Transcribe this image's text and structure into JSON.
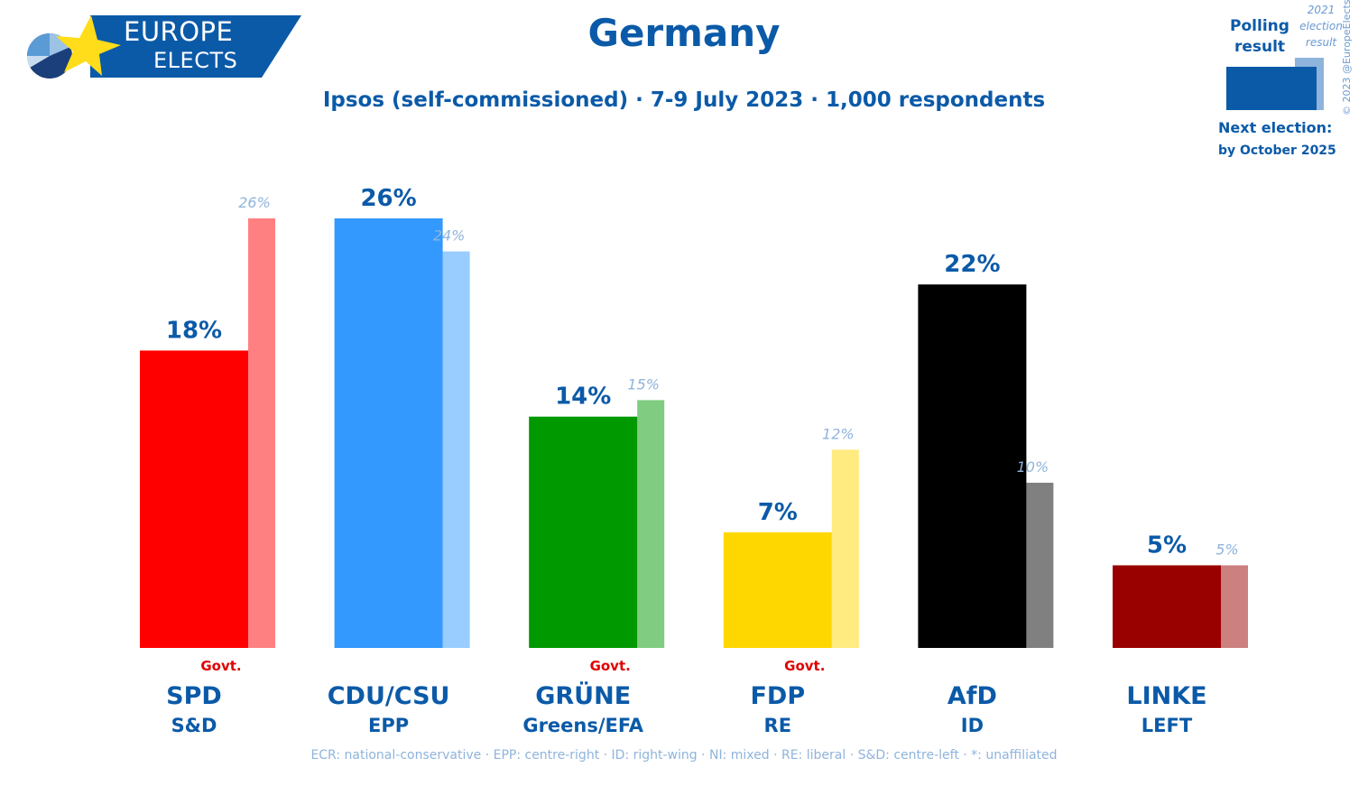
{
  "logo": {
    "line1": "EUROPE",
    "line2": "ELECTS"
  },
  "header": {
    "title": "Germany",
    "subtitle": "Ipsos (self-commissioned) · 7-9 July 2023 · 1,000 respondents"
  },
  "legend": {
    "polling_label": "Polling result",
    "previous_label": "2021 election result",
    "next_election_label": "Next election:",
    "next_election_date": "by October 2025",
    "copyright": "© 2023 @EuropeElects"
  },
  "footer": {
    "note": "ECR: national-conservative · EPP: centre-right · ID: right-wing · NI: mixed · RE: liberal · S&D: centre-left · *: unaffiliated"
  },
  "colors": {
    "brand": "#0b5aa8",
    "brand_light": "#8fb4dc",
    "govt": "#e00000"
  },
  "chart_data": {
    "type": "bar",
    "ylim": [
      0,
      26
    ],
    "series": [
      {
        "name": "Polling result",
        "values": [
          18,
          26,
          14,
          7,
          22,
          5
        ]
      },
      {
        "name": "2021 election result",
        "values": [
          26,
          24,
          15,
          12,
          10,
          5
        ]
      }
    ],
    "categories": [
      "SPD",
      "CDU/CSU",
      "GRÜNE",
      "FDP",
      "AfD",
      "LINKE"
    ],
    "parties": [
      {
        "name": "SPD",
        "group": "S&D",
        "poll": 18,
        "prev": 26,
        "poll_label": "18%",
        "prev_label": "26%",
        "govt": "Govt.",
        "color": "#ff0000",
        "light": "#ff8080"
      },
      {
        "name": "CDU/CSU",
        "group": "EPP",
        "poll": 26,
        "prev": 24,
        "poll_label": "26%",
        "prev_label": "24%",
        "govt": "",
        "color": "#3399ff",
        "light": "#99ccff"
      },
      {
        "name": "GRÜNE",
        "group": "Greens/EFA",
        "poll": 14,
        "prev": 15,
        "poll_label": "14%",
        "prev_label": "15%",
        "govt": "Govt.",
        "color": "#009900",
        "light": "#80cc80"
      },
      {
        "name": "FDP",
        "group": "RE",
        "poll": 7,
        "prev": 12,
        "poll_label": "7%",
        "prev_label": "12%",
        "govt": "Govt.",
        "color": "#ffd700",
        "light": "#ffeb80"
      },
      {
        "name": "AfD",
        "group": "ID",
        "poll": 22,
        "prev": 10,
        "poll_label": "22%",
        "prev_label": "10%",
        "govt": "",
        "color": "#000000",
        "light": "#808080"
      },
      {
        "name": "LINKE",
        "group": "LEFT",
        "poll": 5,
        "prev": 5,
        "poll_label": "5%",
        "prev_label": "5%",
        "govt": "",
        "color": "#990000",
        "light": "#cc8080"
      }
    ]
  }
}
